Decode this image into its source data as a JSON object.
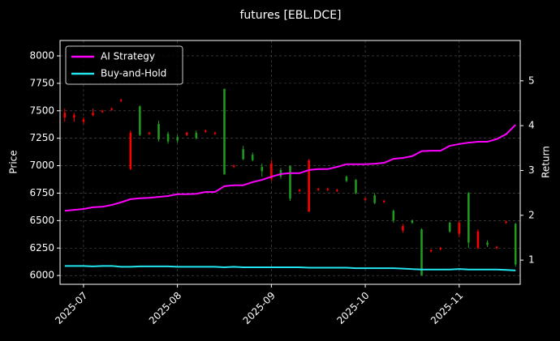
{
  "chart_data": {
    "type": "candlestick_returns",
    "title": "futures [EBL.DCE]",
    "y_label": "Price",
    "y2_label": "Return",
    "categories": [
      null,
      null,
      "2025-07",
      null,
      null,
      null,
      null,
      null,
      null,
      null,
      null,
      null,
      "2025-08",
      null,
      null,
      null,
      null,
      null,
      null,
      null,
      null,
      null,
      "2025-09",
      null,
      null,
      null,
      null,
      null,
      null,
      null,
      null,
      null,
      "2025-10",
      null,
      null,
      null,
      null,
      null,
      null,
      null,
      null,
      null,
      "2025-11",
      null,
      null,
      null,
      null,
      null,
      null
    ],
    "candles": {
      "up_color": "#1f9a1f",
      "down_color": "#ff0000",
      "open": [
        7480,
        7460,
        7420,
        7480,
        7500,
        7520,
        7600,
        7300,
        7280,
        7300,
        7240,
        7220,
        7230,
        7300,
        7250,
        7320,
        7300,
        6920,
        7000,
        7060,
        7050,
        6950,
        7020,
        6900,
        6700,
        6780,
        7050,
        6790,
        6790,
        6780,
        6860,
        6750,
        6700,
        6660,
        6680,
        6500,
        6450,
        6480,
        6000,
        6230,
        6250,
        6400,
        6480,
        6300,
        6400,
        6280,
        6260,
        6490,
        6100
      ],
      "close": [
        7440,
        7440,
        7400,
        7460,
        7490,
        7510,
        7590,
        6970,
        7540,
        7290,
        7380,
        7290,
        7260,
        7280,
        7300,
        7310,
        7290,
        7700,
        6990,
        7150,
        7100,
        6990,
        6880,
        6960,
        7000,
        6770,
        6580,
        6780,
        6780,
        6770,
        6900,
        6870,
        6690,
        6730,
        6670,
        6590,
        6410,
        6500,
        6420,
        6220,
        6240,
        6480,
        6380,
        6750,
        6250,
        6300,
        6250,
        6480,
        6470
      ],
      "high": [
        7520,
        7480,
        7440,
        7520,
        7510,
        7530,
        7610,
        7320,
        7550,
        7310,
        7410,
        7310,
        7280,
        7310,
        7320,
        7330,
        7310,
        7700,
        7010,
        7180,
        7120,
        7020,
        7050,
        6980,
        7000,
        6790,
        7060,
        6800,
        6800,
        6790,
        6910,
        6880,
        6710,
        6750,
        6690,
        6600,
        6470,
        6510,
        6430,
        6240,
        6260,
        6490,
        6500,
        6760,
        6420,
        6320,
        6270,
        6500,
        6480
      ],
      "low": [
        7400,
        7400,
        7380,
        7450,
        7480,
        7500,
        7580,
        6960,
        7270,
        7280,
        7220,
        7200,
        7210,
        7270,
        7240,
        7300,
        7280,
        6920,
        6980,
        7050,
        7040,
        6900,
        6860,
        6880,
        6680,
        6760,
        6580,
        6770,
        6770,
        6760,
        6850,
        6740,
        6680,
        6650,
        6660,
        6480,
        6390,
        6470,
        6000,
        6210,
        6230,
        6390,
        6350,
        6250,
        6240,
        6260,
        6240,
        6470,
        6080
      ]
    },
    "series": [
      {
        "name": "AI Strategy",
        "color": "#ff00ff",
        "axis": "y2",
        "values": [
          2.1,
          2.12,
          2.14,
          2.18,
          2.19,
          2.23,
          2.29,
          2.36,
          2.38,
          2.39,
          2.41,
          2.43,
          2.47,
          2.47,
          2.48,
          2.52,
          2.52,
          2.65,
          2.67,
          2.67,
          2.74,
          2.79,
          2.86,
          2.92,
          2.94,
          2.94,
          3.01,
          3.03,
          3.03,
          3.08,
          3.14,
          3.14,
          3.14,
          3.15,
          3.17,
          3.26,
          3.28,
          3.32,
          3.43,
          3.44,
          3.44,
          3.55,
          3.59,
          3.62,
          3.64,
          3.64,
          3.7,
          3.81,
          4.02
        ]
      },
      {
        "name": "Buy-and-Hold",
        "color": "#22e5f0",
        "axis": "y2",
        "values": [
          0.87,
          0.87,
          0.87,
          0.86,
          0.87,
          0.87,
          0.85,
          0.85,
          0.86,
          0.86,
          0.86,
          0.86,
          0.85,
          0.85,
          0.85,
          0.85,
          0.85,
          0.84,
          0.85,
          0.84,
          0.84,
          0.84,
          0.84,
          0.84,
          0.84,
          0.84,
          0.83,
          0.83,
          0.83,
          0.83,
          0.83,
          0.82,
          0.82,
          0.82,
          0.82,
          0.82,
          0.81,
          0.8,
          0.79,
          0.79,
          0.79,
          0.79,
          0.8,
          0.79,
          0.79,
          0.79,
          0.79,
          0.78,
          0.77
        ]
      }
    ],
    "ylim": [
      5920,
      8140
    ],
    "yticks": [
      6000,
      6250,
      6500,
      6750,
      7000,
      7250,
      7500,
      7750,
      8000
    ],
    "y2lim": [
      0.46,
      5.9
    ],
    "y2ticks": [
      1,
      2,
      3,
      4,
      5
    ],
    "grid": true,
    "legend": "upper left"
  }
}
